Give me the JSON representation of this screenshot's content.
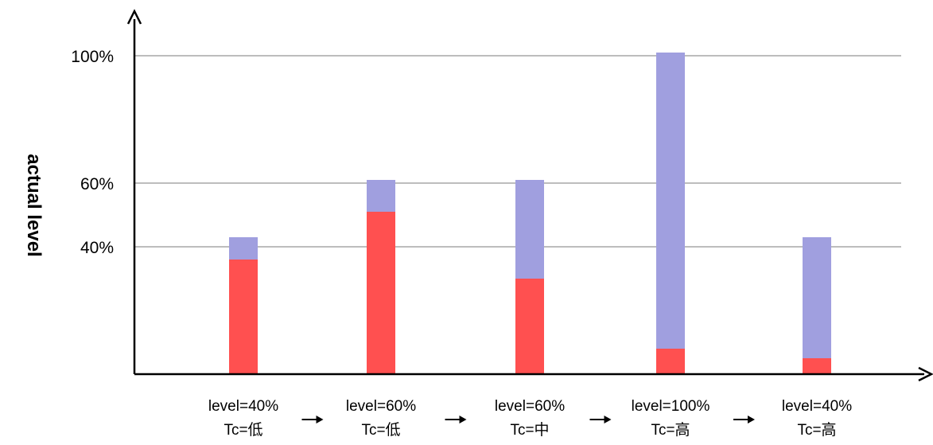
{
  "chart_data": {
    "type": "bar",
    "stacked": true,
    "ylabel": "actual level",
    "xlabel": "",
    "title": "",
    "ylim": [
      0,
      100
    ],
    "yticks": [
      {
        "value": 100,
        "label": "100%"
      },
      {
        "value": 60,
        "label": "60%"
      },
      {
        "value": 40,
        "label": "40%"
      }
    ],
    "grid": true,
    "categories": [
      {
        "line1": "level=40%",
        "line2": "Tc=低"
      },
      {
        "line1": "level=60%",
        "line2": "Tc=低"
      },
      {
        "line1": "level=60%",
        "line2": "Tc=中"
      },
      {
        "line1": "level=100%",
        "line2": "Tc=高"
      },
      {
        "line1": "level=40%",
        "line2": "Tc=高"
      }
    ],
    "series": [
      {
        "color": "#ff5050",
        "values": [
          36,
          51,
          30,
          8,
          5
        ]
      },
      {
        "color": "#a09fdf",
        "values": [
          7,
          10,
          31,
          93,
          38
        ]
      }
    ],
    "arrow_glyph": "→"
  }
}
